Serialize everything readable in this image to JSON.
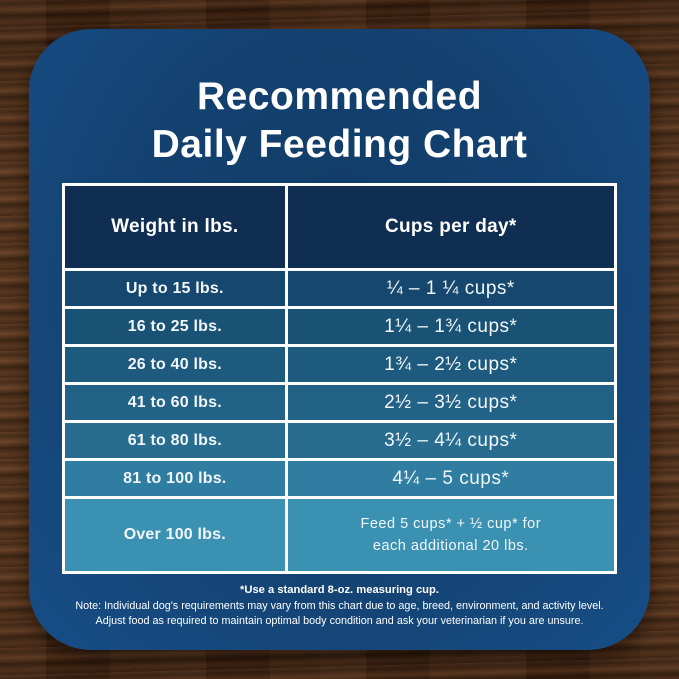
{
  "colors": {
    "wood_brown": "#472a18",
    "card_blue_edge": "#174e87",
    "card_blue_center": "#113a66",
    "header_navy": "#0f2e52",
    "table_border_white": "#ffffff",
    "text_white": "#ffffff",
    "row_colors": [
      "#16486f",
      "#1a5276",
      "#1e5a7e",
      "#226286",
      "#286d90",
      "#2f7da0",
      "#3a91b1"
    ]
  },
  "chart_data": {
    "type": "table",
    "title": "Recommended Daily Feeding Chart",
    "title_line1": "Recommended",
    "title_line2": "Daily Feeding Chart",
    "columns": [
      "Weight in lbs.",
      "Cups per day*"
    ],
    "rows": [
      [
        "Up to 15 lbs.",
        "¼ – 1 ¼ cups*"
      ],
      [
        "16 to 25 lbs.",
        "1¼ – 1¾ cups*"
      ],
      [
        "26 to 40 lbs.",
        "1¾ – 2½ cups*"
      ],
      [
        "41 to 60 lbs.",
        "2½ – 3½ cups*"
      ],
      [
        "61 to 80 lbs.",
        "3½ – 4¼ cups*"
      ],
      [
        "81 to 100 lbs.",
        "4¼ – 5 cups*"
      ],
      [
        "Over 100 lbs.",
        "Feed 5 cups* + ½ cup* for\neach additional 20 lbs."
      ]
    ],
    "footnotes": [
      "*Use a standard 8-oz. measuring cup.",
      "Note: Individual dog's requirements may vary from this chart due to age, breed, environment, and activity level.",
      "Adjust food as required to maintain optimal body condition and ask your veterinarian if you are unsure."
    ]
  }
}
